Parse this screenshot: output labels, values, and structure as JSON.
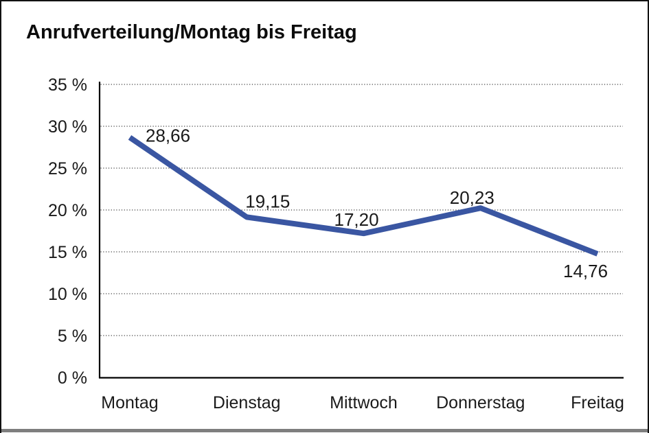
{
  "chart_data": {
    "type": "line",
    "title": "Anrufverteilung/Montag bis Freitag",
    "categories": [
      "Montag",
      "Dienstag",
      "Mittwoch",
      "Donnerstag",
      "Freitag"
    ],
    "values": [
      28.66,
      19.15,
      17.2,
      20.23,
      14.76
    ],
    "value_labels": [
      "28,66",
      "19,15",
      "17,20",
      "20,23",
      "14,76"
    ],
    "y_ticks": [
      0,
      5,
      10,
      15,
      20,
      25,
      30,
      35
    ],
    "y_tick_labels": [
      "0 %",
      "5 %",
      "10 %",
      "15 %",
      "20 %",
      "25 %",
      "30 %",
      "35 %"
    ],
    "ylim": [
      0,
      35
    ],
    "xlabel": "",
    "ylabel": "",
    "legend": "none",
    "grid": "horizontal-dotted",
    "line_color": "#3A56A2",
    "axis_color": "#000000",
    "gridline_color": "#3C3C3C",
    "label_color": "#1A1A1A"
  },
  "frame": {
    "background": "#FFFFFF",
    "border_color": "#111111",
    "bottom_bar_color": "#7E7E7E"
  }
}
